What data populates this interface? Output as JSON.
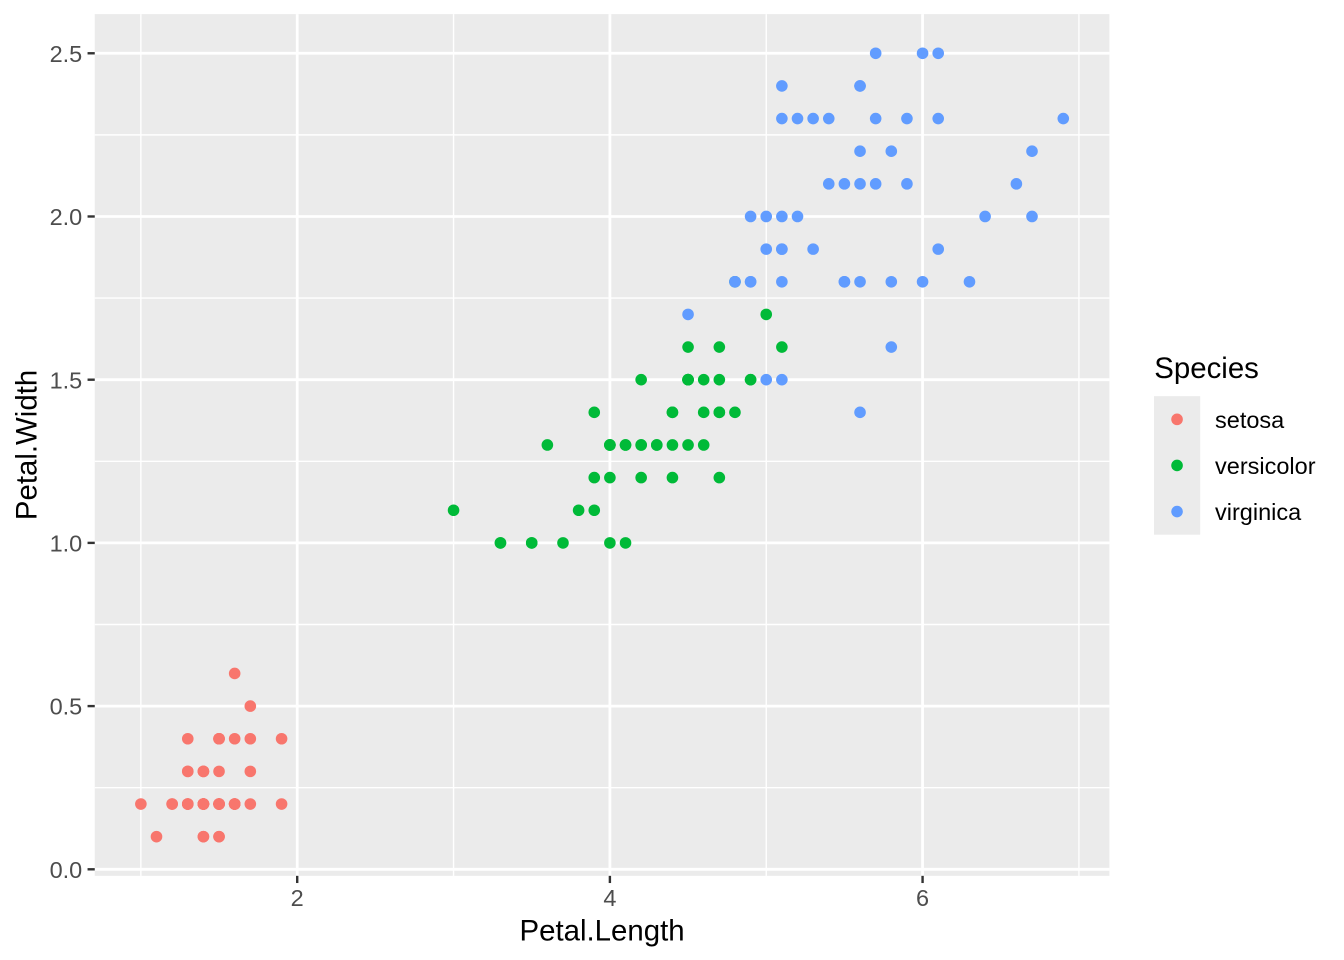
{
  "figure": {
    "kind": "ggplot-scatter",
    "background": "#FFFFFF"
  },
  "chart_data": {
    "type": "scatter",
    "title": "",
    "xlabel": "Petal.Length",
    "ylabel": "Petal.Width",
    "x_axis": {
      "range": [
        0.705,
        7.195
      ],
      "ticks_major": [
        2,
        4,
        6
      ],
      "tick_labels": [
        "2",
        "4",
        "6"
      ],
      "ticks_minor": [
        1,
        3,
        5,
        7
      ]
    },
    "y_axis": {
      "range": [
        -0.02,
        2.62
      ],
      "ticks_major": [
        0.0,
        0.5,
        1.0,
        1.5,
        2.0,
        2.5
      ],
      "tick_labels": [
        "0.0",
        "0.5",
        "1.0",
        "1.5",
        "2.0",
        "2.5"
      ],
      "ticks_minor": [
        0.25,
        0.75,
        1.25,
        1.75,
        2.25
      ]
    },
    "legend": {
      "title": "Species",
      "position": "right",
      "entries": [
        {
          "label": "setosa",
          "color": "#F8766D"
        },
        {
          "label": "versicolor",
          "color": "#00BA38"
        },
        {
          "label": "virginica",
          "color": "#619CFF"
        }
      ]
    },
    "style": {
      "panel_background": "#EBEBEB",
      "grid_color": "#FFFFFF",
      "tick_mark_color": "#333333",
      "tick_label_color": "#4D4D4D",
      "axis_title_color": "#000000",
      "legend_key_background": "#EBEBEB",
      "point_radius_px": 5.8
    },
    "series": [
      {
        "name": "setosa",
        "color": "#F8766D",
        "points": [
          [
            1.4,
            0.2
          ],
          [
            1.4,
            0.2
          ],
          [
            1.3,
            0.2
          ],
          [
            1.5,
            0.2
          ],
          [
            1.4,
            0.2
          ],
          [
            1.7,
            0.4
          ],
          [
            1.4,
            0.3
          ],
          [
            1.5,
            0.2
          ],
          [
            1.4,
            0.2
          ],
          [
            1.5,
            0.1
          ],
          [
            1.5,
            0.2
          ],
          [
            1.6,
            0.2
          ],
          [
            1.4,
            0.1
          ],
          [
            1.1,
            0.1
          ],
          [
            1.2,
            0.2
          ],
          [
            1.5,
            0.4
          ],
          [
            1.3,
            0.4
          ],
          [
            1.4,
            0.3
          ],
          [
            1.7,
            0.3
          ],
          [
            1.5,
            0.3
          ],
          [
            1.7,
            0.2
          ],
          [
            1.5,
            0.4
          ],
          [
            1.0,
            0.2
          ],
          [
            1.7,
            0.5
          ],
          [
            1.9,
            0.2
          ],
          [
            1.6,
            0.2
          ],
          [
            1.6,
            0.4
          ],
          [
            1.5,
            0.2
          ],
          [
            1.4,
            0.2
          ],
          [
            1.6,
            0.2
          ],
          [
            1.6,
            0.2
          ],
          [
            1.5,
            0.4
          ],
          [
            1.5,
            0.1
          ],
          [
            1.4,
            0.2
          ],
          [
            1.5,
            0.2
          ],
          [
            1.2,
            0.2
          ],
          [
            1.3,
            0.2
          ],
          [
            1.4,
            0.1
          ],
          [
            1.3,
            0.2
          ],
          [
            1.5,
            0.2
          ],
          [
            1.3,
            0.3
          ],
          [
            1.3,
            0.3
          ],
          [
            1.3,
            0.2
          ],
          [
            1.6,
            0.6
          ],
          [
            1.9,
            0.4
          ],
          [
            1.4,
            0.3
          ],
          [
            1.6,
            0.2
          ],
          [
            1.4,
            0.2
          ],
          [
            1.5,
            0.2
          ],
          [
            1.4,
            0.2
          ]
        ]
      },
      {
        "name": "versicolor",
        "color": "#00BA38",
        "points": [
          [
            4.7,
            1.4
          ],
          [
            4.5,
            1.5
          ],
          [
            4.9,
            1.5
          ],
          [
            4.0,
            1.3
          ],
          [
            4.6,
            1.5
          ],
          [
            4.5,
            1.3
          ],
          [
            4.7,
            1.6
          ],
          [
            3.3,
            1.0
          ],
          [
            4.6,
            1.3
          ],
          [
            3.9,
            1.4
          ],
          [
            3.5,
            1.0
          ],
          [
            4.2,
            1.5
          ],
          [
            4.0,
            1.0
          ],
          [
            4.7,
            1.4
          ],
          [
            3.6,
            1.3
          ],
          [
            4.4,
            1.4
          ],
          [
            4.5,
            1.5
          ],
          [
            4.1,
            1.0
          ],
          [
            4.5,
            1.5
          ],
          [
            3.9,
            1.1
          ],
          [
            4.8,
            1.8
          ],
          [
            4.0,
            1.3
          ],
          [
            4.9,
            1.5
          ],
          [
            4.7,
            1.2
          ],
          [
            4.3,
            1.3
          ],
          [
            4.4,
            1.4
          ],
          [
            4.8,
            1.4
          ],
          [
            5.0,
            1.7
          ],
          [
            4.5,
            1.5
          ],
          [
            3.5,
            1.0
          ],
          [
            3.8,
            1.1
          ],
          [
            3.7,
            1.0
          ],
          [
            3.9,
            1.2
          ],
          [
            5.1,
            1.6
          ],
          [
            4.5,
            1.5
          ],
          [
            4.5,
            1.6
          ],
          [
            4.7,
            1.5
          ],
          [
            4.4,
            1.3
          ],
          [
            4.1,
            1.3
          ],
          [
            4.0,
            1.3
          ],
          [
            4.4,
            1.2
          ],
          [
            4.6,
            1.4
          ],
          [
            4.0,
            1.2
          ],
          [
            3.3,
            1.0
          ],
          [
            4.2,
            1.3
          ],
          [
            4.2,
            1.2
          ],
          [
            4.2,
            1.3
          ],
          [
            4.3,
            1.3
          ],
          [
            3.0,
            1.1
          ],
          [
            4.1,
            1.3
          ]
        ]
      },
      {
        "name": "virginica",
        "color": "#619CFF",
        "points": [
          [
            6.0,
            2.5
          ],
          [
            5.1,
            1.9
          ],
          [
            5.9,
            2.1
          ],
          [
            5.6,
            1.8
          ],
          [
            5.8,
            2.2
          ],
          [
            6.6,
            2.1
          ],
          [
            4.5,
            1.7
          ],
          [
            6.3,
            1.8
          ],
          [
            5.8,
            1.8
          ],
          [
            6.1,
            2.5
          ],
          [
            5.1,
            2.0
          ],
          [
            5.3,
            1.9
          ],
          [
            5.5,
            2.1
          ],
          [
            5.0,
            2.0
          ],
          [
            5.1,
            2.4
          ],
          [
            5.3,
            2.3
          ],
          [
            5.5,
            1.8
          ],
          [
            6.7,
            2.2
          ],
          [
            6.9,
            2.3
          ],
          [
            5.0,
            1.5
          ],
          [
            5.7,
            2.3
          ],
          [
            4.9,
            2.0
          ],
          [
            6.7,
            2.0
          ],
          [
            4.9,
            1.8
          ],
          [
            5.7,
            2.1
          ],
          [
            6.0,
            1.8
          ],
          [
            4.8,
            1.8
          ],
          [
            4.9,
            1.8
          ],
          [
            5.6,
            2.1
          ],
          [
            5.8,
            1.6
          ],
          [
            6.1,
            1.9
          ],
          [
            6.4,
            2.0
          ],
          [
            5.6,
            2.2
          ],
          [
            5.1,
            1.5
          ],
          [
            5.6,
            1.4
          ],
          [
            6.1,
            2.3
          ],
          [
            5.6,
            2.4
          ],
          [
            5.5,
            1.8
          ],
          [
            4.8,
            1.8
          ],
          [
            5.4,
            2.1
          ],
          [
            5.6,
            2.4
          ],
          [
            5.1,
            2.3
          ],
          [
            5.1,
            1.9
          ],
          [
            5.9,
            2.3
          ],
          [
            5.7,
            2.5
          ],
          [
            5.2,
            2.3
          ],
          [
            5.0,
            1.9
          ],
          [
            5.2,
            2.0
          ],
          [
            5.4,
            2.3
          ],
          [
            5.1,
            1.8
          ]
        ]
      }
    ]
  }
}
